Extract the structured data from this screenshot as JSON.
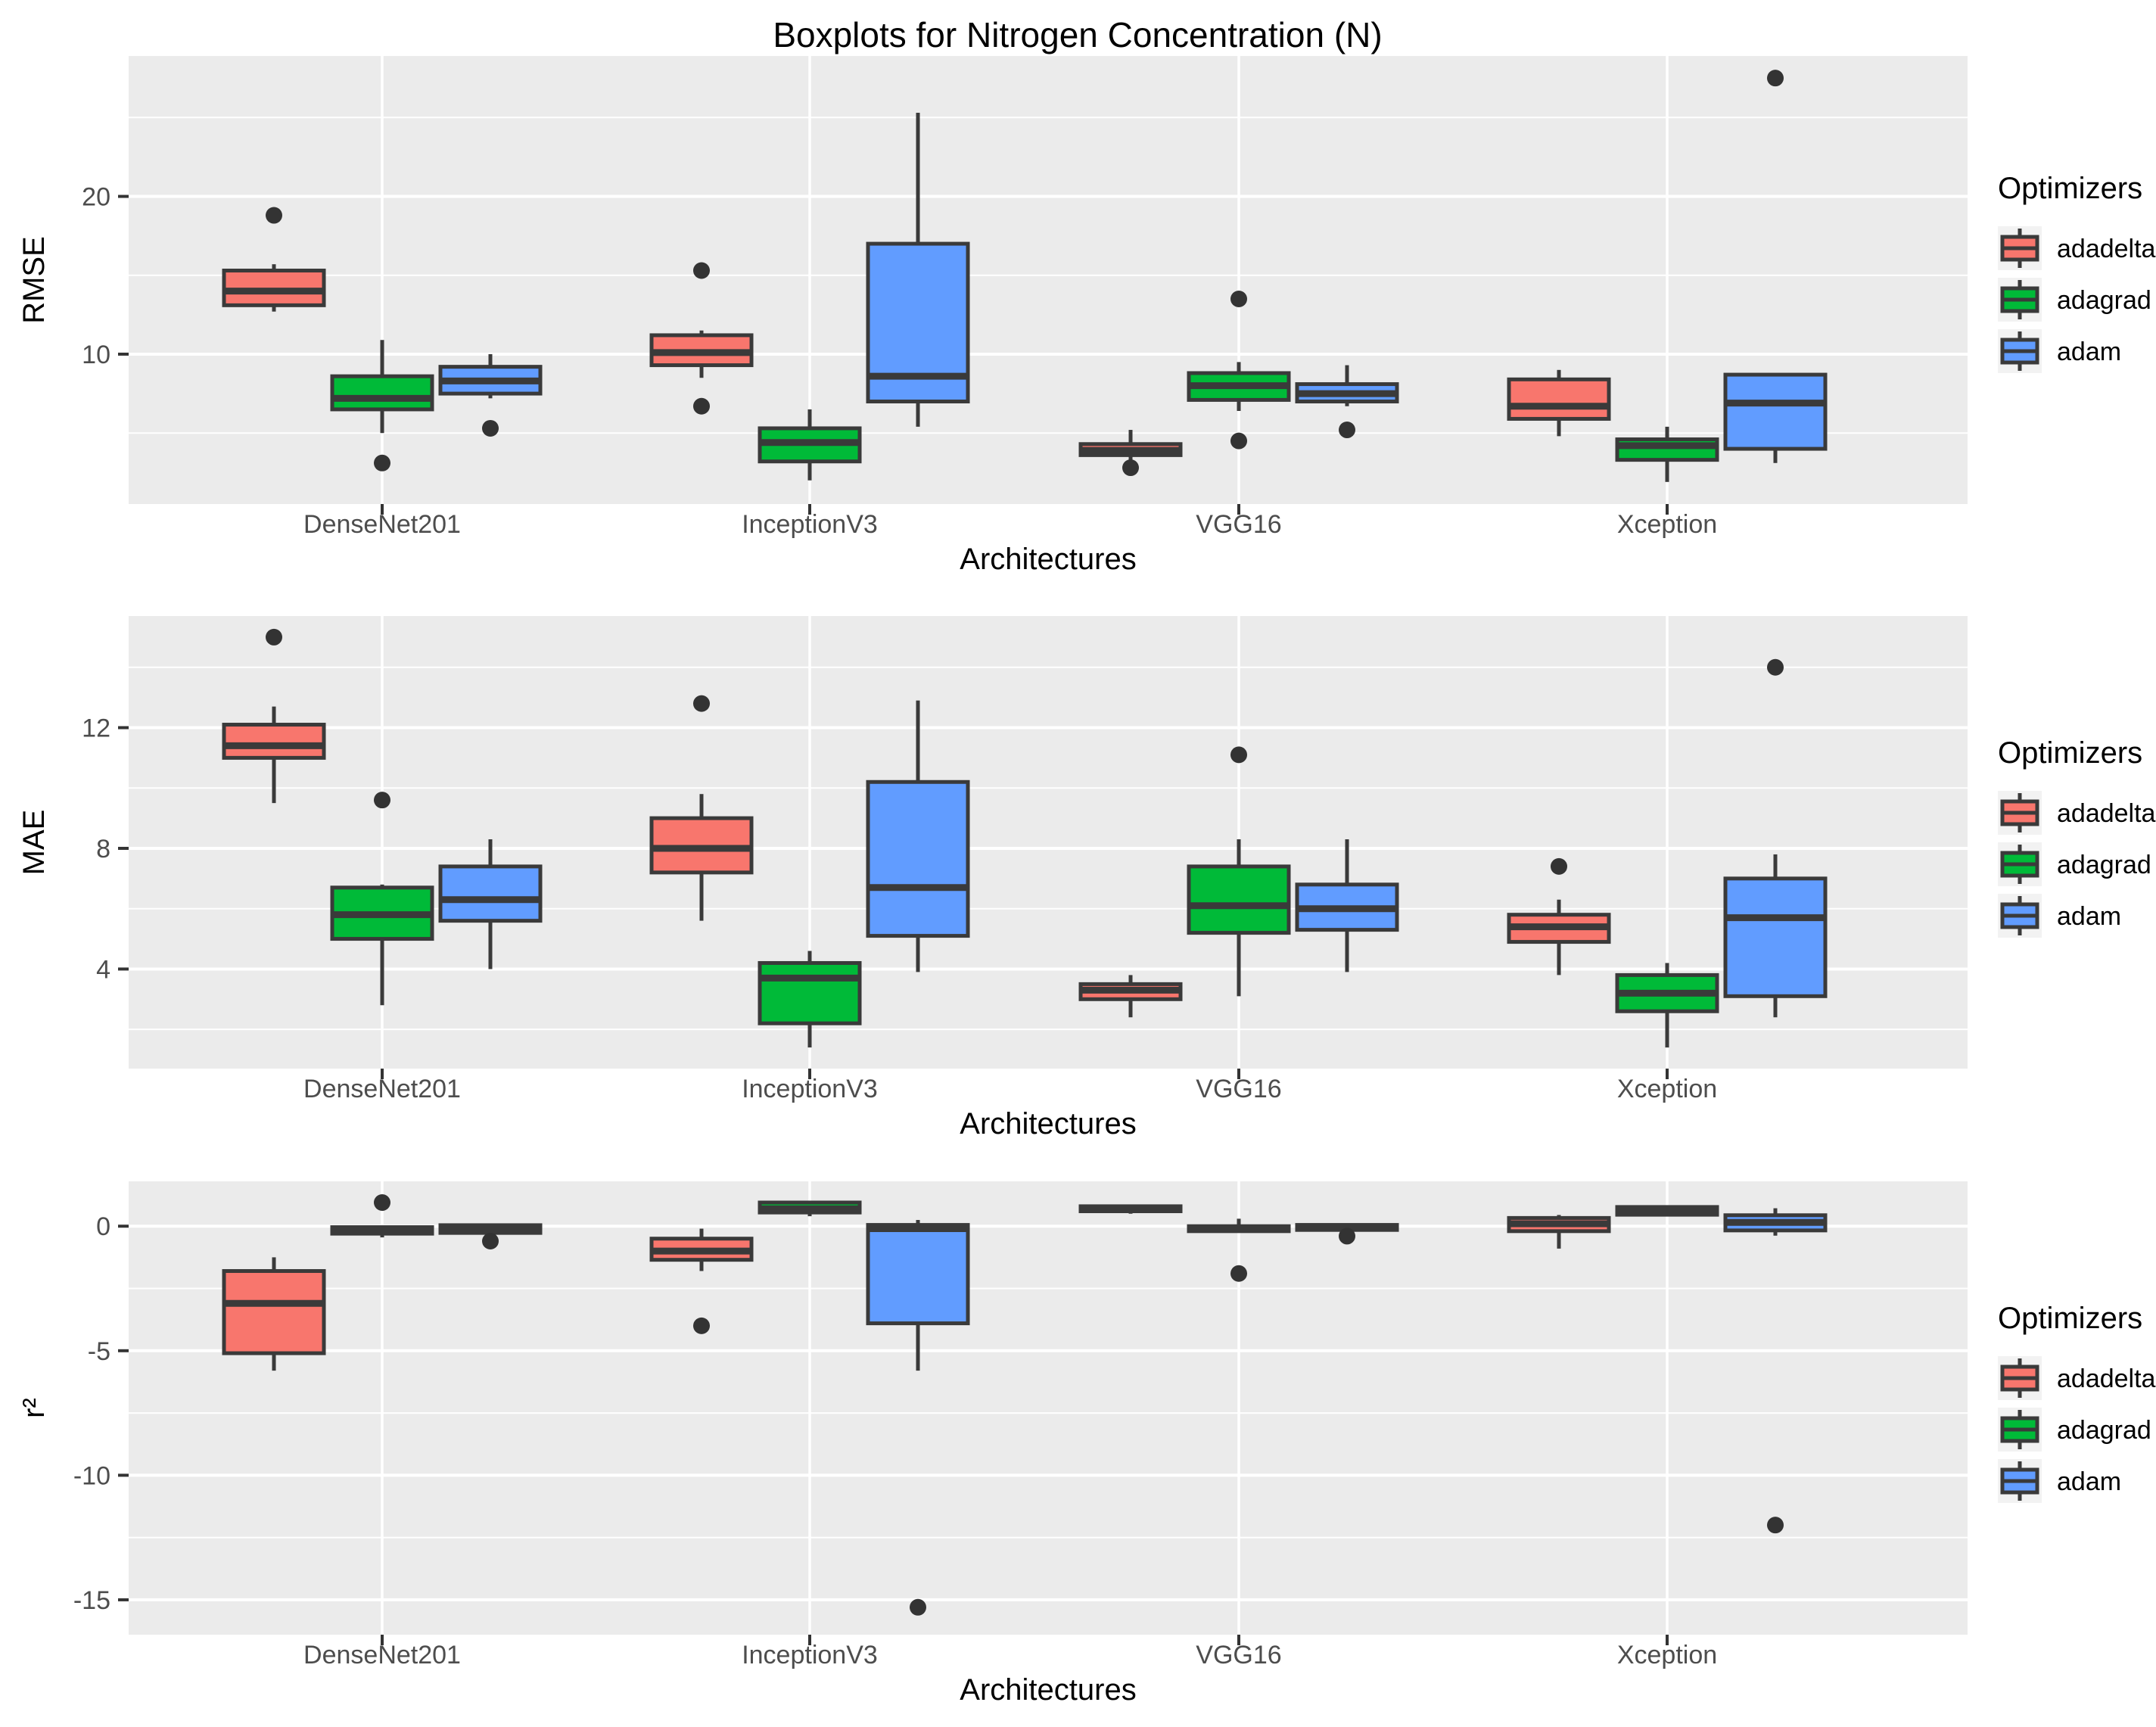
{
  "title": "Boxplots for Nitrogen Concentration (N)",
  "x_axis": {
    "label": "Architectures",
    "categories": [
      "DenseNet201",
      "InceptionV3",
      "VGG16",
      "Xception"
    ]
  },
  "legend": {
    "title": "Optimizers",
    "items": [
      {
        "label": "adadelta",
        "color": "#F8766D"
      },
      {
        "label": "adagrad",
        "color": "#00BA38"
      },
      {
        "label": "adam",
        "color": "#619CFF"
      }
    ]
  },
  "colors": {
    "adadelta": "#F8766D",
    "adagrad": "#00BA38",
    "adam": "#619CFF",
    "box_border": "#3A3A3A",
    "outlier": "#333333",
    "panel_bg": "#EBEBEB",
    "grid": "#FFFFFF",
    "axis_text": "#4D4D4D",
    "tick_mark": "#333333",
    "legend_key_bg": "#F2F2F2"
  },
  "chart_data": [
    {
      "type": "boxplot",
      "metric": "RMSE",
      "ylabel": "RMSE",
      "ylim": [
        0.5,
        28.9
      ],
      "y_ticks": [
        10,
        20
      ],
      "y_minor": [
        5,
        15,
        25
      ],
      "categories": [
        "DenseNet201",
        "InceptionV3",
        "VGG16",
        "Xception"
      ],
      "series": [
        {
          "name": "adadelta",
          "boxes": [
            {
              "whislo": 12.7,
              "q1": 13.1,
              "med": 14.0,
              "q3": 15.3,
              "whishi": 15.7,
              "outliers": [
                18.8
              ]
            },
            {
              "whislo": 8.5,
              "q1": 9.3,
              "med": 10.1,
              "q3": 11.2,
              "whishi": 11.5,
              "outliers": [
                15.3,
                6.7
              ]
            },
            {
              "whislo": 3.3,
              "q1": 3.6,
              "med": 3.9,
              "q3": 4.3,
              "whishi": 5.2,
              "outliers": [
                2.8
              ]
            },
            {
              "whislo": 4.8,
              "q1": 5.9,
              "med": 6.7,
              "q3": 8.4,
              "whishi": 9.0,
              "outliers": []
            }
          ]
        },
        {
          "name": "adagrad",
          "boxes": [
            {
              "whislo": 5.0,
              "q1": 6.5,
              "med": 7.2,
              "q3": 8.6,
              "whishi": 10.9,
              "outliers": [
                3.1
              ]
            },
            {
              "whislo": 2.0,
              "q1": 3.2,
              "med": 4.4,
              "q3": 5.3,
              "whishi": 6.5,
              "outliers": []
            },
            {
              "whislo": 6.4,
              "q1": 7.1,
              "med": 8.0,
              "q3": 8.8,
              "whishi": 9.5,
              "outliers": [
                13.5,
                4.5
              ]
            },
            {
              "whislo": 1.9,
              "q1": 3.3,
              "med": 4.2,
              "q3": 4.6,
              "whishi": 5.4,
              "outliers": []
            }
          ]
        },
        {
          "name": "adam",
          "boxes": [
            {
              "whislo": 7.2,
              "q1": 7.5,
              "med": 8.3,
              "q3": 9.2,
              "whishi": 10.0,
              "outliers": [
                5.3
              ]
            },
            {
              "whislo": 5.4,
              "q1": 7.0,
              "med": 8.6,
              "q3": 17.0,
              "whishi": 25.3,
              "outliers": []
            },
            {
              "whislo": 6.7,
              "q1": 7.0,
              "med": 7.5,
              "q3": 8.1,
              "whishi": 9.3,
              "outliers": [
                5.2
              ]
            },
            {
              "whislo": 3.1,
              "q1": 4.0,
              "med": 6.9,
              "q3": 8.7,
              "whishi": 8.8,
              "outliers": [
                27.5
              ]
            }
          ]
        }
      ]
    },
    {
      "type": "boxplot",
      "metric": "MAE",
      "ylabel": "MAE",
      "ylim": [
        0.7,
        15.7
      ],
      "y_ticks": [
        4,
        8,
        12
      ],
      "y_minor": [
        2,
        6,
        10,
        14
      ],
      "categories": [
        "DenseNet201",
        "InceptionV3",
        "VGG16",
        "Xception"
      ],
      "series": [
        {
          "name": "adadelta",
          "boxes": [
            {
              "whislo": 9.5,
              "q1": 11.0,
              "med": 11.4,
              "q3": 12.1,
              "whishi": 12.7,
              "outliers": [
                15.0
              ]
            },
            {
              "whislo": 5.6,
              "q1": 7.2,
              "med": 8.0,
              "q3": 9.0,
              "whishi": 9.8,
              "outliers": [
                12.8
              ]
            },
            {
              "whislo": 2.4,
              "q1": 3.0,
              "med": 3.3,
              "q3": 3.5,
              "whishi": 3.8,
              "outliers": []
            },
            {
              "whislo": 3.8,
              "q1": 4.9,
              "med": 5.4,
              "q3": 5.8,
              "whishi": 6.3,
              "outliers": [
                7.4
              ]
            }
          ]
        },
        {
          "name": "adagrad",
          "boxes": [
            {
              "whislo": 2.8,
              "q1": 5.0,
              "med": 5.8,
              "q3": 6.7,
              "whishi": 6.8,
              "outliers": [
                9.6
              ]
            },
            {
              "whislo": 1.4,
              "q1": 2.2,
              "med": 3.7,
              "q3": 4.2,
              "whishi": 4.6,
              "outliers": []
            },
            {
              "whislo": 3.1,
              "q1": 5.2,
              "med": 6.1,
              "q3": 7.4,
              "whishi": 8.3,
              "outliers": [
                11.1
              ]
            },
            {
              "whislo": 1.4,
              "q1": 2.6,
              "med": 3.2,
              "q3": 3.8,
              "whishi": 4.2,
              "outliers": []
            }
          ]
        },
        {
          "name": "adam",
          "boxes": [
            {
              "whislo": 4.0,
              "q1": 5.6,
              "med": 6.3,
              "q3": 7.4,
              "whishi": 8.3,
              "outliers": []
            },
            {
              "whislo": 3.9,
              "q1": 5.1,
              "med": 6.7,
              "q3": 10.2,
              "whishi": 12.9,
              "outliers": []
            },
            {
              "whislo": 3.9,
              "q1": 5.3,
              "med": 6.0,
              "q3": 6.8,
              "whishi": 8.3,
              "outliers": []
            },
            {
              "whislo": 2.4,
              "q1": 3.1,
              "med": 5.7,
              "q3": 7.0,
              "whishi": 7.8,
              "outliers": [
                14.0
              ]
            }
          ]
        }
      ]
    },
    {
      "type": "boxplot",
      "metric": "r2",
      "ylabel": "r²",
      "ylim": [
        -16.4,
        1.8
      ],
      "y_ticks": [
        0,
        -5,
        -10,
        -15
      ],
      "y_minor": [
        -2.5,
        -7.5,
        -12.5
      ],
      "categories": [
        "DenseNet201",
        "InceptionV3",
        "VGG16",
        "Xception"
      ],
      "series": [
        {
          "name": "adadelta",
          "boxes": [
            {
              "whislo": -5.8,
              "q1": -5.1,
              "med": -3.1,
              "q3": -1.8,
              "whishi": -1.25,
              "outliers": []
            },
            {
              "whislo": -1.8,
              "q1": -1.35,
              "med": -1.0,
              "q3": -0.5,
              "whishi": -0.1,
              "outliers": [
                -4.0
              ]
            },
            {
              "whislo": 0.5,
              "q1": 0.6,
              "med": 0.7,
              "q3": 0.8,
              "whishi": 0.85,
              "outliers": []
            },
            {
              "whislo": -0.9,
              "q1": -0.2,
              "med": 0.1,
              "q3": 0.33,
              "whishi": 0.45,
              "outliers": []
            }
          ]
        },
        {
          "name": "adagrad",
          "boxes": [
            {
              "whislo": -0.45,
              "q1": -0.3,
              "med": -0.2,
              "q3": -0.04,
              "whishi": -0.02,
              "outliers": [
                0.95
              ]
            },
            {
              "whislo": 0.4,
              "q1": 0.55,
              "med": 0.7,
              "q3": 0.95,
              "whishi": 0.97,
              "outliers": []
            },
            {
              "whislo": -0.25,
              "q1": -0.2,
              "med": -0.1,
              "q3": 0.0,
              "whishi": 0.3,
              "outliers": [
                -1.9
              ]
            },
            {
              "whislo": 0.4,
              "q1": 0.46,
              "med": 0.63,
              "q3": 0.77,
              "whishi": 0.8,
              "outliers": []
            }
          ]
        },
        {
          "name": "adam",
          "boxes": [
            {
              "whislo": -0.3,
              "q1": -0.27,
              "med": -0.12,
              "q3": 0.04,
              "whishi": 0.05,
              "outliers": [
                -0.6
              ]
            },
            {
              "whislo": -5.8,
              "q1": -3.9,
              "med": -0.1,
              "q3": 0.05,
              "whishi": 0.25,
              "outliers": [
                -15.3
              ]
            },
            {
              "whislo": -0.2,
              "q1": -0.15,
              "med": -0.02,
              "q3": 0.05,
              "whishi": 0.1,
              "outliers": [
                -0.4
              ]
            },
            {
              "whislo": -0.38,
              "q1": -0.17,
              "med": 0.15,
              "q3": 0.44,
              "whishi": 0.72,
              "outliers": [
                -12.0
              ]
            }
          ]
        }
      ]
    }
  ]
}
